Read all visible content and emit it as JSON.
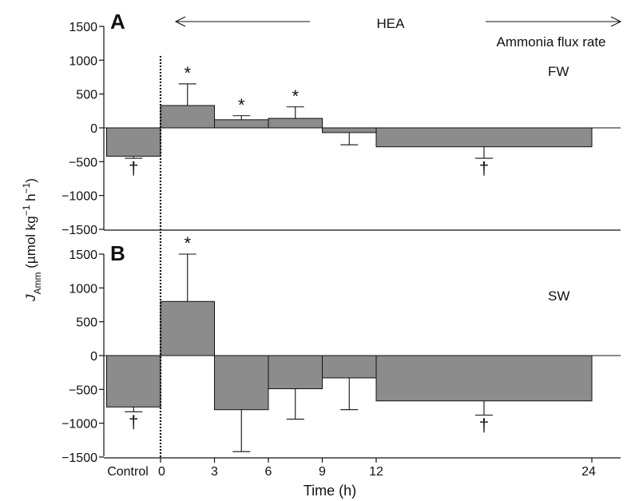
{
  "chart_data": [
    {
      "type": "bar",
      "panel_label": "A",
      "condition_label": "FW",
      "header_left": "HEA",
      "header_right": "Ammonia flux rate",
      "ylim": [
        -1500,
        1500
      ],
      "yticks": [
        "1500",
        "1000",
        "500",
        "0",
        "-500",
        "-1000",
        "-1500"
      ],
      "bars": [
        {
          "x0": -3,
          "x1": 0,
          "value": -420,
          "err": 450,
          "mark": "†"
        },
        {
          "x0": 0,
          "x1": 3,
          "value": 330,
          "err": 650,
          "mark": "*"
        },
        {
          "x0": 3,
          "x1": 6,
          "value": 120,
          "err": 180,
          "mark": "*"
        },
        {
          "x0": 6,
          "x1": 9,
          "value": 140,
          "err": 310,
          "mark": "*"
        },
        {
          "x0": 9,
          "x1": 12,
          "value": -70,
          "err": 250,
          "mark": ""
        },
        {
          "x0": 12,
          "x1": 24,
          "value": -280,
          "err": 450,
          "mark": "†"
        }
      ]
    },
    {
      "type": "bar",
      "panel_label": "B",
      "condition_label": "SW",
      "ylim": [
        -1500,
        1500
      ],
      "yticks": [
        "1500",
        "1000",
        "500",
        "0",
        "-500",
        "-1000",
        "-1500"
      ],
      "bars": [
        {
          "x0": -3,
          "x1": 0,
          "value": -760,
          "err": 830,
          "mark": "†"
        },
        {
          "x0": 0,
          "x1": 3,
          "value": 800,
          "err": 1500,
          "mark": "*"
        },
        {
          "x0": 3,
          "x1": 6,
          "value": -800,
          "err": 1420,
          "mark": ""
        },
        {
          "x0": 6,
          "x1": 9,
          "value": -490,
          "err": 940,
          "mark": ""
        },
        {
          "x0": 9,
          "x1": 12,
          "value": -330,
          "err": 800,
          "mark": ""
        },
        {
          "x0": 12,
          "x1": 24,
          "value": -670,
          "err": 880,
          "mark": "†"
        }
      ]
    }
  ],
  "x_axis": {
    "label": "Time (h)",
    "ticks": [
      {
        "x": -3,
        "label": "Control"
      },
      {
        "x": 0,
        "label": "0"
      },
      {
        "x": 3,
        "label": "3"
      },
      {
        "x": 6,
        "label": "6"
      },
      {
        "x": 9,
        "label": "9"
      },
      {
        "x": 12,
        "label": "12"
      },
      {
        "x": 24,
        "label": "24"
      }
    ]
  },
  "y_axis": {
    "label_main": "J",
    "label_sub": "Amm",
    "label_rest": " (µmol kg",
    "label_sup1": "−1",
    "label_mid": " h",
    "label_sup2": "−1",
    "label_end": ")"
  }
}
